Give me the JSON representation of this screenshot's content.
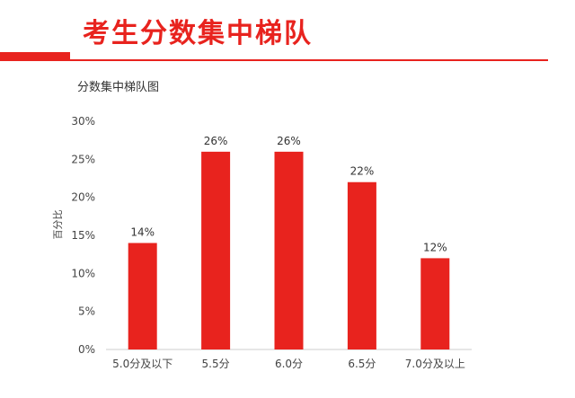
{
  "header": {
    "title": "考生分数集中梯队",
    "accent_color": "#e8231e"
  },
  "chart_data": {
    "type": "bar",
    "title": "分数集中梯队图",
    "xlabel": "",
    "ylabel": "百分比",
    "categories": [
      "5.0分及以下",
      "5.5分",
      "6.0分",
      "6.5分",
      "7.0分及以上"
    ],
    "values": [
      14,
      26,
      26,
      22,
      12
    ],
    "data_labels": [
      "14%",
      "26%",
      "26%",
      "22%",
      "12%"
    ],
    "ylim": [
      0,
      30
    ],
    "yticks": [
      0,
      5,
      10,
      15,
      20,
      25,
      30
    ],
    "ytick_labels": [
      "0%",
      "5%",
      "10%",
      "15%",
      "20%",
      "25%",
      "30%"
    ],
    "grid": false,
    "bar_color": "#e8231e",
    "legend": "none"
  }
}
